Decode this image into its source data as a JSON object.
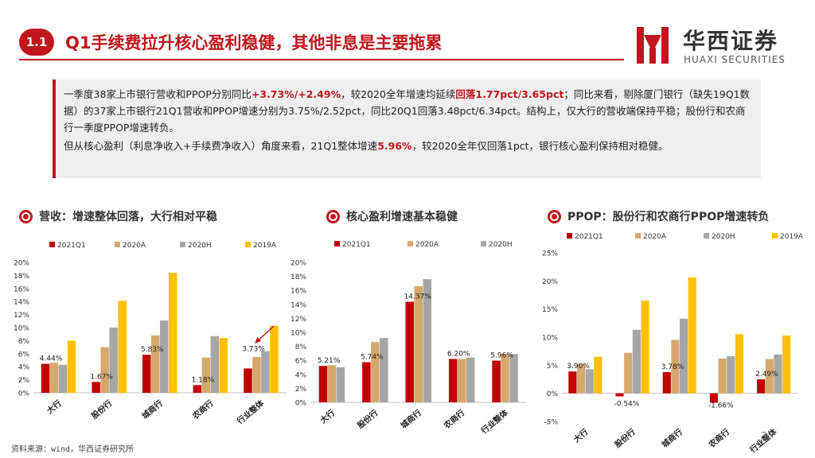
{
  "header": {
    "section_number": "1.1",
    "title": "Q1手续费拉升核心盈利稳健，其他非息是主要拖累"
  },
  "logo": {
    "name_cn": "华西证券",
    "name_en": "HUAXI SECURITIES"
  },
  "summary": {
    "p1_a": "一季度38家上市银行营收和PPOP分别同比",
    "p1_hl1": "+3.73%/+2.49%",
    "p1_b": "，较2020全年增速均延续",
    "p1_hl2": "回落1.77pct/3.65pct",
    "p1_c": "；同比来看，剔除厦门银行（缺失19Q1数据）的37家上市银行21Q1营收和PPOP增速分别为3.75%/2.52pct，同比20Q1回落3.48pct/6.34pct。结构上，仅大行的营收端保持平稳；股份行和农商行一季度PPOP增速转负。",
    "p2_a": "但从核心盈利（利息净收入+手续费净收入）角度来看，21Q1整体增速",
    "p2_hl": "5.96%",
    "p2_b": "，较2020全年仅回落1pct，银行核心盈利保持相对稳健。"
  },
  "charts": {
    "revenue_title": "营收：增速整体回落，大行相对平稳",
    "core_title": "核心盈利增速基本稳健",
    "ppop_title": "PPOP：股份行和农商行PPOP增速转负"
  },
  "colors": {
    "accent": "#c0161c",
    "2021Q1": "#c00000",
    "2020A": "#d6a86d",
    "2020H": "#a6a6a6",
    "2019A": "#ffc000"
  },
  "chart_data": [
    {
      "type": "bar",
      "title": "营收：增速整体回落，大行相对平稳",
      "categories": [
        "大行",
        "股份行",
        "城商行",
        "农商行",
        "行业整体"
      ],
      "series": [
        {
          "name": "2021Q1",
          "values": [
            4.44,
            1.67,
            5.83,
            1.18,
            3.73
          ]
        },
        {
          "name": "2020A",
          "values": [
            4.6,
            7.0,
            8.8,
            5.4,
            5.5
          ]
        },
        {
          "name": "2020H",
          "values": [
            4.3,
            10.0,
            11.1,
            8.7,
            6.4
          ]
        },
        {
          "name": "2019A",
          "values": [
            8.0,
            14.1,
            18.4,
            8.4,
            10.3
          ]
        }
      ],
      "value_labels": [
        "4.44%",
        "1.67%",
        "5.83%",
        "1.18%",
        "3.73%"
      ],
      "ylim": [
        0,
        20
      ],
      "yticks": [
        "0%",
        "2%",
        "4%",
        "6%",
        "8%",
        "10%",
        "12%",
        "14%",
        "16%",
        "18%",
        "20%"
      ],
      "legend": "top",
      "annotation": "arrow pointing to 行业整体"
    },
    {
      "type": "bar",
      "title": "核心盈利增速基本稳健",
      "categories": [
        "大行",
        "股份行",
        "城商行",
        "农商行",
        "行业整体"
      ],
      "series": [
        {
          "name": "2021Q1",
          "values": [
            5.21,
            5.74,
            14.37,
            6.2,
            5.96
          ]
        },
        {
          "name": "2020A",
          "values": [
            5.3,
            8.6,
            16.6,
            6.2,
            6.9
          ]
        },
        {
          "name": "2020H",
          "values": [
            5.0,
            9.2,
            17.6,
            6.4,
            6.9
          ]
        }
      ],
      "value_labels": [
        "5.21%",
        "5.74%",
        "14.37%",
        "6.20%",
        "5.96%"
      ],
      "ylim": [
        0,
        20
      ],
      "yticks": [
        "0%",
        "2%",
        "4%",
        "6%",
        "8%",
        "10%",
        "12%",
        "14%",
        "16%",
        "18%",
        "20%"
      ],
      "legend": "top"
    },
    {
      "type": "bar",
      "title": "PPOP：股份行和农商行PPOP增速转负",
      "categories": [
        "大行",
        "股份行",
        "城商行",
        "农商行",
        "行业整体"
      ],
      "series": [
        {
          "name": "2021Q1",
          "values": [
            3.9,
            -0.54,
            3.78,
            -1.66,
            2.49
          ]
        },
        {
          "name": "2020A",
          "values": [
            5.2,
            7.2,
            9.5,
            6.2,
            6.1
          ]
        },
        {
          "name": "2020H",
          "values": [
            4.3,
            11.3,
            13.3,
            6.6,
            6.9
          ]
        },
        {
          "name": "2019A",
          "values": [
            6.5,
            16.5,
            20.6,
            10.5,
            10.3
          ]
        }
      ],
      "value_labels": [
        "3.90%",
        "-0.54%",
        "3.78%",
        "-1.66%",
        "2.49%"
      ],
      "ylim": [
        -5,
        25
      ],
      "yticks": [
        "-5%",
        "0%",
        "5%",
        "10%",
        "15%",
        "20%",
        "25%"
      ],
      "legend": "top"
    }
  ],
  "footer": {
    "source": "资料来源：wind，华西证券研究所",
    "page_number": "3"
  }
}
